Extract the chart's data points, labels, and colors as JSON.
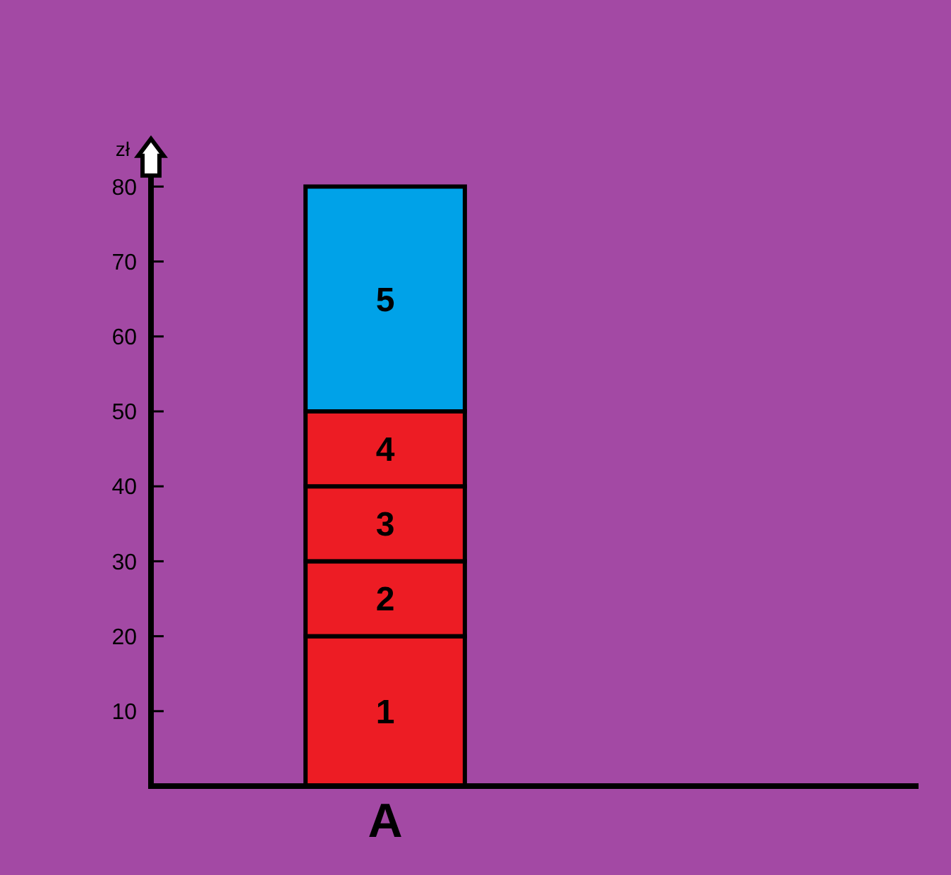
{
  "chart_data": {
    "type": "bar",
    "stacked": true,
    "ylabel": "zł",
    "categories": [
      "A"
    ],
    "series": [
      {
        "name": "1",
        "color": "#ed1c24",
        "values": [
          20
        ]
      },
      {
        "name": "2",
        "color": "#ed1c24",
        "values": [
          10
        ]
      },
      {
        "name": "3",
        "color": "#ed1c24",
        "values": [
          10
        ]
      },
      {
        "name": "4",
        "color": "#ed1c24",
        "values": [
          10
        ]
      },
      {
        "name": "5",
        "color": "#00a2e8",
        "values": [
          30
        ]
      }
    ],
    "ylim": [
      0,
      86
    ],
    "yticks": [
      10,
      20,
      30,
      40,
      50,
      60,
      70,
      80
    ],
    "grid": false
  }
}
